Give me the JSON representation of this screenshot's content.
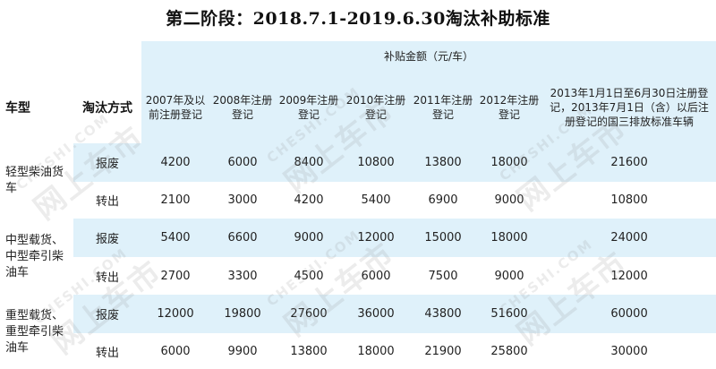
{
  "title": "第二阶段：2018.7.1-2019.6.30淘汰补助标准",
  "header": {
    "group_label": "补贴金额（元/车）",
    "vehicle_type": "车型",
    "method": "淘汰方式",
    "columns": [
      "2007年及以前注册登记",
      "2008年注册登记",
      "2009年注册登记",
      "2010年注册登记",
      "2011年注册登记",
      "2012年注册登记",
      "2013年1月1日至6月30日注册登记，2013年7月1日（含）以后注册登记的国三排放标准车辆"
    ]
  },
  "groups": [
    {
      "vehicle": "轻型柴油货车",
      "rows": [
        {
          "method": "报废",
          "values": [
            "4200",
            "6000",
            "8400",
            "10800",
            "13800",
            "18000",
            "21600"
          ]
        },
        {
          "method": "转出",
          "values": [
            "2100",
            "3000",
            "4200",
            "5400",
            "6900",
            "9000",
            "10800"
          ]
        }
      ]
    },
    {
      "vehicle": "中型载货、中型牵引柴油车",
      "rows": [
        {
          "method": "报废",
          "values": [
            "5400",
            "6600",
            "9000",
            "12000",
            "15000",
            "18000",
            "24000"
          ]
        },
        {
          "method": "转出",
          "values": [
            "2700",
            "3300",
            "4500",
            "6000",
            "7500",
            "9000",
            "12000"
          ]
        }
      ]
    },
    {
      "vehicle": "重型载货、重型牵引柴油车",
      "rows": [
        {
          "method": "报废",
          "values": [
            "12000",
            "19800",
            "27600",
            "36000",
            "43800",
            "51600",
            "60000"
          ]
        },
        {
          "method": "转出",
          "values": [
            "6000",
            "9900",
            "13800",
            "18000",
            "21900",
            "25800",
            "30000"
          ]
        }
      ]
    }
  ],
  "watermark": {
    "line1": "CHESHI.COM",
    "line2": "网上车市"
  },
  "colors": {
    "band": "#dff1fa",
    "text": "#222222"
  }
}
